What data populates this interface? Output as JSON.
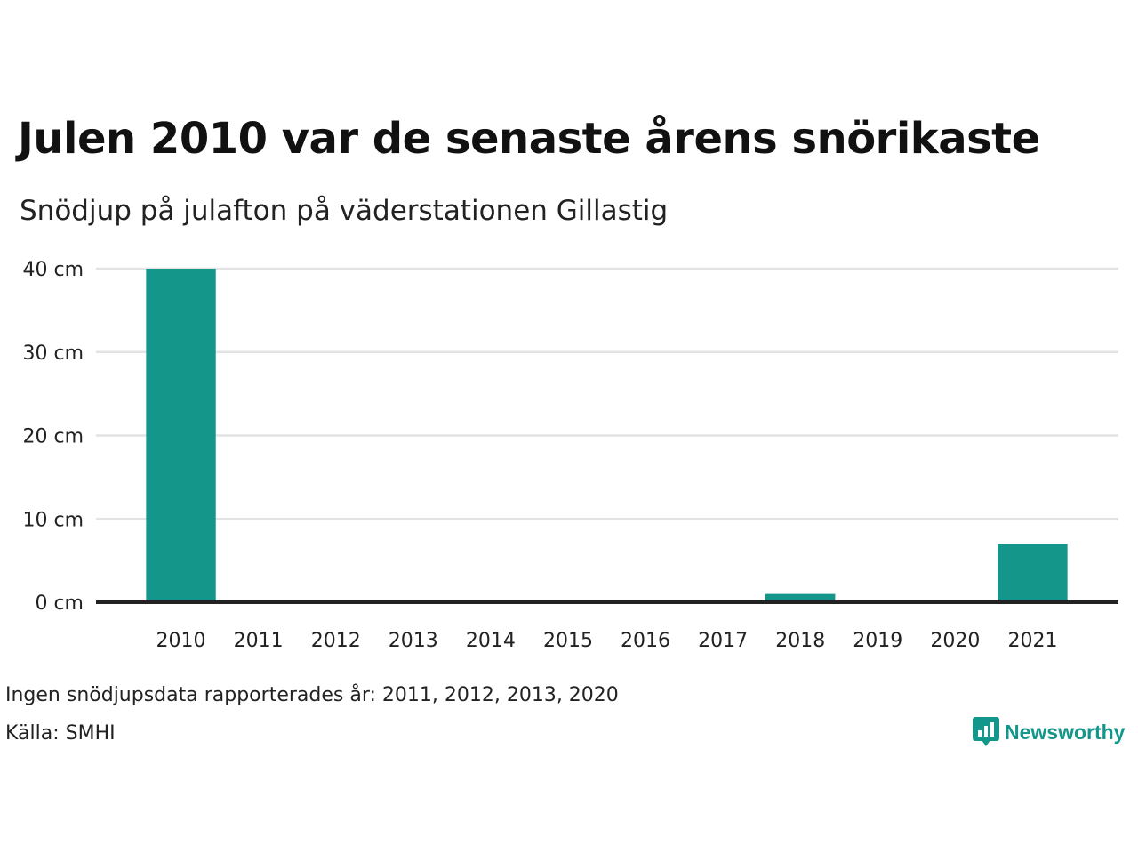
{
  "title": "Julen 2010 var de senaste årens snörikaste",
  "subtitle": "Snödjup på julafton på väderstationen Gillastig",
  "note": "Ingen snödjupsdata rapporterades år: 2011, 2012, 2013, 2020",
  "source": "Källa: SMHI",
  "brand": {
    "name": "Newsworthy",
    "icon": "bar-chart-speech-bubble-icon",
    "color": "#12978a"
  },
  "chart_data": {
    "type": "bar",
    "categories": [
      "2010",
      "2011",
      "2012",
      "2013",
      "2014",
      "2015",
      "2016",
      "2017",
      "2018",
      "2019",
      "2020",
      "2021"
    ],
    "values": [
      40,
      null,
      null,
      null,
      0,
      0,
      0,
      0,
      1,
      0,
      null,
      7
    ],
    "ylim": [
      0,
      40
    ],
    "yticks": [
      0,
      10,
      20,
      30,
      40
    ],
    "y_tick_labels": [
      "0 cm",
      "10 cm",
      "20 cm",
      "30 cm",
      "40 cm"
    ],
    "bar_color": "#14968a",
    "grid": true,
    "grid_color": "#e3e3e3",
    "baseline_color": "#222222"
  }
}
